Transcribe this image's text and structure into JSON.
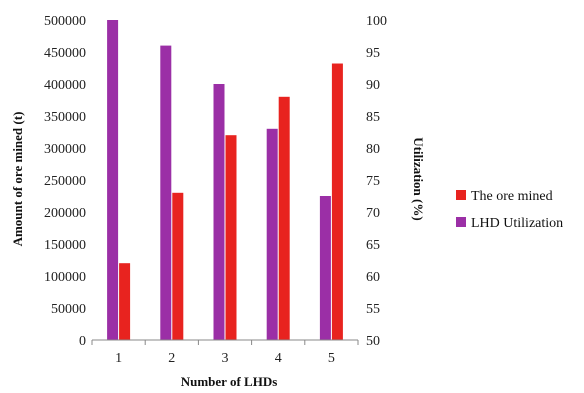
{
  "chart_data": {
    "type": "bar",
    "x_title": "Number of LHDs",
    "y_left_title": "Amount of ore mined (t)",
    "y_right_title": "Utilization (%)",
    "categories": [
      "1",
      "2",
      "3",
      "4",
      "5"
    ],
    "y_left_range": [
      0,
      500000
    ],
    "y_left_ticks": [
      "0",
      "50000",
      "100000",
      "150000",
      "200000",
      "250000",
      "300000",
      "350000",
      "400000",
      "450000",
      "500000"
    ],
    "y_right_range": [
      50,
      100
    ],
    "y_right_ticks": [
      "50",
      "55",
      "60",
      "65",
      "70",
      "75",
      "80",
      "85",
      "90",
      "95",
      "100"
    ],
    "grid": false,
    "legend_position": "right",
    "series": [
      {
        "name": "The  ore mined",
        "axis": "left",
        "color": "#e8231f",
        "values": [
          120000,
          230000,
          320000,
          380000,
          432000
        ]
      },
      {
        "name": "LHD Utilization",
        "axis": "right",
        "color": "#9b2fa6",
        "values": [
          100,
          96,
          90,
          83,
          72.5
        ]
      }
    ],
    "legend": [
      "The  ore mined",
      "LHD Utilization"
    ]
  }
}
